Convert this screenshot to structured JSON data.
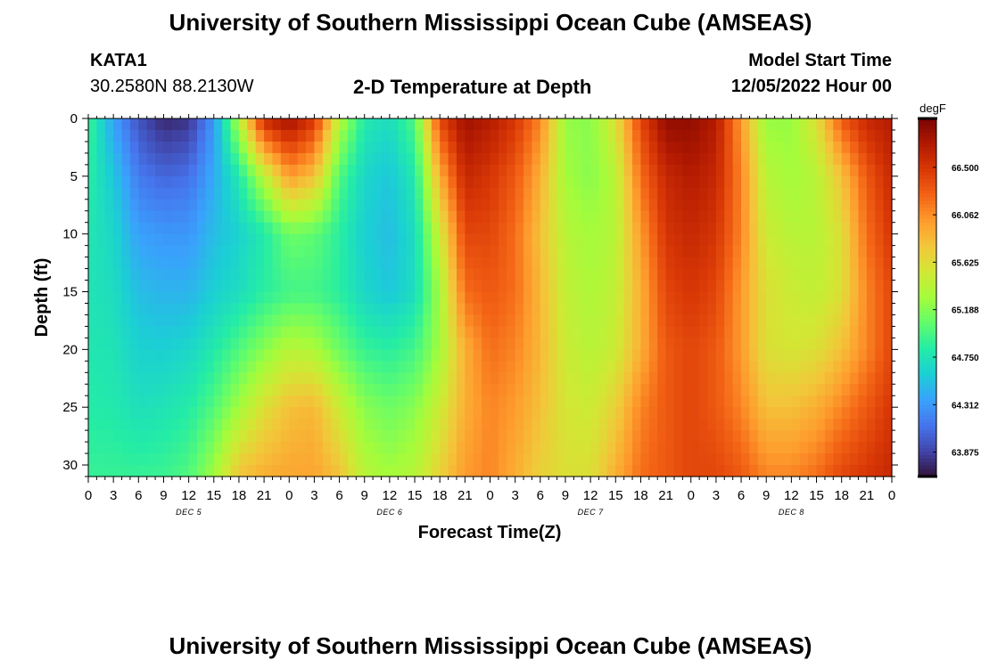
{
  "header": {
    "title": "University of Southern Mississippi Ocean Cube (AMSEAS)",
    "station": "KATA1",
    "coords": "30.2580N  88.2130W",
    "plot_title": "2-D Temperature at Depth",
    "model_start_label": "Model Start Time",
    "model_start_value": "12/05/2022 Hour 00",
    "footer_title": "University of Southern Mississippi Ocean Cube (AMSEAS)"
  },
  "chart_data": {
    "type": "heatmap",
    "title": "2-D Temperature at Depth",
    "xlabel": "Forecast Time(Z)",
    "ylabel": "Depth (ft)",
    "x_hours_range": [
      0,
      96
    ],
    "x_tick_step_hours": 3,
    "x_tick_labels": [
      "0",
      "3",
      "6",
      "9",
      "12",
      "15",
      "18",
      "21",
      "0",
      "3",
      "6",
      "9",
      "12",
      "15",
      "18",
      "21",
      "0",
      "3",
      "6",
      "9",
      "12",
      "15",
      "18",
      "21",
      "0",
      "3",
      "6",
      "9",
      "12",
      "15",
      "18",
      "21",
      "0"
    ],
    "day_labels": [
      {
        "label": "DEC 5",
        "hour": 12
      },
      {
        "label": "DEC 6",
        "hour": 36
      },
      {
        "label": "DEC 7",
        "hour": 60
      },
      {
        "label": "DEC 8",
        "hour": 84
      }
    ],
    "y_range": [
      0,
      31
    ],
    "y_ticks": [
      0,
      5,
      10,
      15,
      20,
      25,
      30
    ],
    "colorbar": {
      "unit": "degF",
      "min": 63.65,
      "max": 66.95,
      "tick_values": [
        63.875,
        64.312,
        64.75,
        65.188,
        65.625,
        66.062,
        66.5
      ],
      "tick_labels": [
        "63.875",
        "64.312",
        "64.750",
        "65.188",
        "65.625",
        "66.062",
        "66.500"
      ],
      "colors": [
        "#30123b",
        "#4145ab",
        "#4675ed",
        "#39a2fc",
        "#1bcfd4",
        "#24eca6",
        "#61fc6c",
        "#a4fc3b",
        "#d1e834",
        "#f3c63a",
        "#fe9b2d",
        "#f36315",
        "#d93806",
        "#b11901",
        "#7a0402"
      ]
    },
    "anchor_depths_ft": [
      0,
      5,
      10,
      15,
      20,
      25,
      31
    ],
    "profiles": [
      {
        "hour": 0,
        "values": [
          64.95,
          64.85,
          64.78,
          64.76,
          64.78,
          64.82,
          64.9
        ]
      },
      {
        "hour": 3,
        "values": [
          64.35,
          64.55,
          64.65,
          64.7,
          64.75,
          64.8,
          64.9
        ]
      },
      {
        "hour": 6,
        "values": [
          63.95,
          64.15,
          64.35,
          64.5,
          64.62,
          64.72,
          64.9
        ]
      },
      {
        "hour": 9,
        "values": [
          63.75,
          64.05,
          64.3,
          64.45,
          64.6,
          64.75,
          64.92
        ]
      },
      {
        "hour": 12,
        "values": [
          63.8,
          64.1,
          64.3,
          64.45,
          64.65,
          64.82,
          65.0
        ]
      },
      {
        "hour": 15,
        "values": [
          64.3,
          64.4,
          64.5,
          64.6,
          64.8,
          65.0,
          65.3
        ]
      },
      {
        "hour": 18,
        "values": [
          65.4,
          64.8,
          64.62,
          64.7,
          65.0,
          65.3,
          65.8
        ]
      },
      {
        "hour": 21,
        "values": [
          66.6,
          65.4,
          64.8,
          64.85,
          65.2,
          65.6,
          65.9
        ]
      },
      {
        "hour": 24,
        "values": [
          66.8,
          66.0,
          65.1,
          64.95,
          65.4,
          65.8,
          65.95
        ]
      },
      {
        "hour": 27,
        "values": [
          66.5,
          65.8,
          65.05,
          64.95,
          65.35,
          65.85,
          65.95
        ]
      },
      {
        "hour": 30,
        "values": [
          65.4,
          65.0,
          64.85,
          64.85,
          65.1,
          65.5,
          65.8
        ]
      },
      {
        "hour": 33,
        "values": [
          64.8,
          64.65,
          64.6,
          64.65,
          64.9,
          65.2,
          65.4
        ]
      },
      {
        "hour": 36,
        "values": [
          64.7,
          64.55,
          64.5,
          64.55,
          64.85,
          65.1,
          65.3
        ]
      },
      {
        "hour": 39,
        "values": [
          65.0,
          64.8,
          64.7,
          64.7,
          64.95,
          65.2,
          65.4
        ]
      },
      {
        "hour": 42,
        "values": [
          66.4,
          65.9,
          65.5,
          65.3,
          65.3,
          65.5,
          65.7
        ]
      },
      {
        "hour": 45,
        "values": [
          66.8,
          66.6,
          66.4,
          66.2,
          65.9,
          65.9,
          66.0
        ]
      },
      {
        "hour": 48,
        "values": [
          66.7,
          66.5,
          66.4,
          66.3,
          66.2,
          66.1,
          66.1
        ]
      },
      {
        "hour": 51,
        "values": [
          66.5,
          66.3,
          66.2,
          66.2,
          66.1,
          66.0,
          65.9
        ]
      },
      {
        "hour": 54,
        "values": [
          66.1,
          65.9,
          65.8,
          65.85,
          65.85,
          65.8,
          65.7
        ]
      },
      {
        "hour": 57,
        "values": [
          65.25,
          65.3,
          65.4,
          65.45,
          65.5,
          65.55,
          65.6
        ]
      },
      {
        "hour": 60,
        "values": [
          65.2,
          65.2,
          65.3,
          65.35,
          65.4,
          65.5,
          65.6
        ]
      },
      {
        "hour": 63,
        "values": [
          65.6,
          65.4,
          65.4,
          65.45,
          65.5,
          65.7,
          65.9
        ]
      },
      {
        "hour": 66,
        "values": [
          66.4,
          66.2,
          66.0,
          65.9,
          65.9,
          66.1,
          66.2
        ]
      },
      {
        "hour": 69,
        "values": [
          66.85,
          66.6,
          66.5,
          66.4,
          66.3,
          66.3,
          66.3
        ]
      },
      {
        "hour": 72,
        "values": [
          66.85,
          66.7,
          66.6,
          66.5,
          66.4,
          66.4,
          66.4
        ]
      },
      {
        "hour": 75,
        "values": [
          66.7,
          66.6,
          66.5,
          66.4,
          66.3,
          66.3,
          66.4
        ]
      },
      {
        "hour": 78,
        "values": [
          66.0,
          66.1,
          66.1,
          66.0,
          66.0,
          66.1,
          66.3
        ]
      },
      {
        "hour": 81,
        "values": [
          65.25,
          65.4,
          65.5,
          65.6,
          65.6,
          65.8,
          66.1
        ]
      },
      {
        "hour": 84,
        "values": [
          65.25,
          65.3,
          65.4,
          65.5,
          65.55,
          65.8,
          66.1
        ]
      },
      {
        "hour": 87,
        "values": [
          65.6,
          65.4,
          65.4,
          65.45,
          65.6,
          65.9,
          66.2
        ]
      },
      {
        "hour": 90,
        "values": [
          66.3,
          65.8,
          65.6,
          65.6,
          65.8,
          66.1,
          66.4
        ]
      },
      {
        "hour": 93,
        "values": [
          66.6,
          66.3,
          66.2,
          66.1,
          66.1,
          66.3,
          66.5
        ]
      },
      {
        "hour": 96,
        "values": [
          66.7,
          66.6,
          66.5,
          66.4,
          66.4,
          66.5,
          66.6
        ]
      }
    ]
  }
}
